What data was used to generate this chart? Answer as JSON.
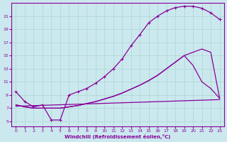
{
  "xlabel": "Windchill (Refroidissement éolien,°C)",
  "background_color": "#cbe8ef",
  "grid_color": "#aad8cc",
  "line_color": "#880099",
  "x_ticks": [
    0,
    1,
    2,
    3,
    4,
    5,
    6,
    7,
    8,
    9,
    10,
    11,
    12,
    13,
    14,
    15,
    16,
    17,
    18,
    19,
    20,
    21,
    22,
    23
  ],
  "y_ticks": [
    5,
    7,
    9,
    11,
    13,
    15,
    17,
    19,
    21
  ],
  "xlim": [
    -0.5,
    23.5
  ],
  "ylim": [
    4.2,
    23.0
  ],
  "line1_x": [
    0,
    1,
    2,
    3,
    4,
    5,
    6,
    7,
    8,
    9,
    10,
    11,
    12,
    13,
    14,
    15,
    16,
    17,
    18,
    19,
    20,
    21,
    22,
    23
  ],
  "line1_y": [
    9.5,
    8.0,
    7.2,
    7.5,
    5.2,
    5.2,
    9.0,
    9.5,
    10.0,
    10.8,
    11.8,
    13.0,
    14.5,
    16.5,
    18.2,
    20.0,
    21.0,
    21.8,
    22.3,
    22.5,
    22.5,
    22.2,
    21.5,
    20.5
  ],
  "line2_x": [
    0,
    1,
    2,
    3,
    4,
    5,
    6,
    7,
    8,
    9,
    10,
    11,
    12,
    13,
    14,
    15,
    16,
    17,
    18,
    19,
    20,
    21,
    22,
    23
  ],
  "line2_y": [
    7.5,
    7.2,
    7.0,
    7.0,
    7.0,
    7.0,
    7.2,
    7.4,
    7.7,
    8.0,
    8.4,
    8.8,
    9.3,
    9.9,
    10.5,
    11.2,
    12.0,
    13.0,
    14.0,
    15.0,
    15.5,
    16.0,
    15.5,
    8.5
  ],
  "line3_x": [
    0,
    1,
    2,
    3,
    4,
    5,
    6,
    7,
    8,
    9,
    10,
    11,
    12,
    13,
    14,
    15,
    16,
    17,
    18,
    19,
    20,
    21,
    22,
    23
  ],
  "line3_y": [
    7.5,
    7.2,
    7.0,
    7.0,
    7.0,
    7.0,
    7.2,
    7.4,
    7.7,
    8.0,
    8.4,
    8.8,
    9.3,
    9.9,
    10.5,
    11.2,
    12.0,
    13.0,
    14.0,
    15.0,
    13.5,
    11.0,
    10.0,
    8.5
  ],
  "line4_x": [
    0,
    23
  ],
  "line4_y": [
    7.3,
    8.3
  ]
}
